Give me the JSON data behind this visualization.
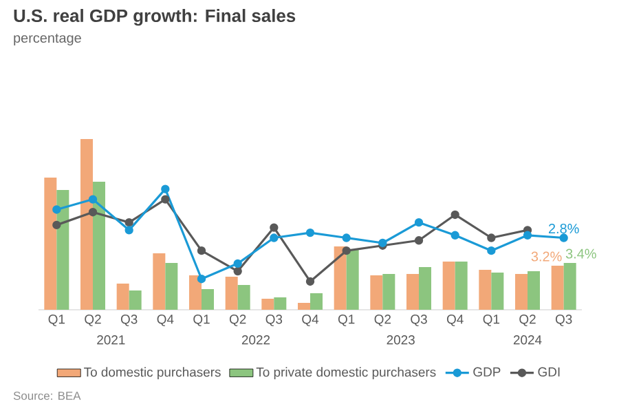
{
  "chart_data": {
    "type": "bar",
    "title": "U.S. real GDP growth: Final sales",
    "subtitle": "percentage",
    "categories": [
      "Q1",
      "Q2",
      "Q3",
      "Q4",
      "Q1",
      "Q2",
      "Q3",
      "Q4",
      "Q1",
      "Q2",
      "Q3",
      "Q4",
      "Q1",
      "Q2",
      "Q3"
    ],
    "annotations": [
      "2021",
      "2022",
      "2023",
      "2024",
      "Source: BEA"
    ],
    "ylim": [
      0,
      12.5
    ],
    "y2lim": [
      0,
      6.7
    ],
    "legend": "bottom",
    "marker": "circle",
    "series": [
      {
        "name": "To domestic purchasers",
        "color": "#f2a878",
        "values": [
          9.6,
          12.4,
          1.9,
          4.1,
          2.5,
          2.4,
          0.8,
          0.5,
          4.6,
          2.5,
          2.6,
          3.5,
          2.9,
          2.6,
          3.2
        ],
        "value_labels": [
          null,
          null,
          null,
          null,
          null,
          null,
          null,
          null,
          null,
          null,
          null,
          null,
          null,
          null,
          "3.2%"
        ]
      },
      {
        "name": "To private domestic purchasers",
        "color": "#8cc57f",
        "values": [
          8.7,
          9.3,
          1.4,
          3.4,
          1.5,
          1.8,
          0.9,
          1.2,
          4.4,
          2.6,
          3.1,
          3.5,
          2.7,
          2.8,
          3.4
        ],
        "value_labels": [
          null,
          null,
          null,
          null,
          null,
          null,
          null,
          null,
          null,
          null,
          null,
          null,
          null,
          null,
          "3.4%"
        ]
      },
      {
        "name": "GDP",
        "type": "line",
        "axis": "y2",
        "color": "#1a9ad6",
        "values": [
          3.9,
          4.3,
          3.1,
          4.7,
          1.2,
          1.8,
          2.8,
          3.0,
          2.8,
          2.6,
          3.4,
          2.9,
          2.3,
          2.9,
          2.8
        ],
        "value_labels": [
          null,
          null,
          null,
          null,
          null,
          null,
          null,
          null,
          null,
          null,
          null,
          null,
          null,
          null,
          "2.8%"
        ]
      },
      {
        "name": "GDI",
        "type": "line",
        "axis": "y2",
        "color": "#595959",
        "values": [
          3.3,
          3.8,
          3.4,
          4.3,
          2.3,
          1.5,
          3.2,
          1.1,
          2.3,
          2.5,
          2.7,
          3.7,
          2.8,
          3.1,
          null
        ]
      }
    ]
  }
}
